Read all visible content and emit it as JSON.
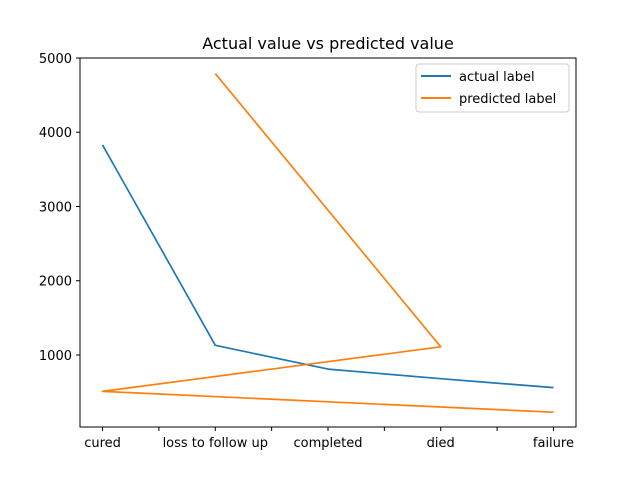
{
  "chart_data": {
    "type": "line",
    "title": "Actual value vs predicted value",
    "xlabel": "",
    "ylabel": "",
    "x_ticks": [
      {
        "x": 0,
        "label": "cured"
      },
      {
        "x": 0.5,
        "label": ""
      },
      {
        "x": 1,
        "label": "loss to follow up"
      },
      {
        "x": 1.5,
        "label": ""
      },
      {
        "x": 2,
        "label": "completed"
      },
      {
        "x": 2.5,
        "label": ""
      },
      {
        "x": 3,
        "label": "died"
      },
      {
        "x": 3.5,
        "label": ""
      },
      {
        "x": 4,
        "label": "failure"
      }
    ],
    "xlim": [
      -0.2,
      4.2
    ],
    "ylim": [
      30,
      5000
    ],
    "y_ticks": [
      1000,
      2000,
      3000,
      4000,
      5000
    ],
    "grid": false,
    "legend_position": "top-right",
    "series": [
      {
        "name": "actual label",
        "color": "#1f77b4",
        "x": [
          0,
          1,
          2,
          3,
          4
        ],
        "y": [
          3830,
          1130,
          810,
          680,
          560
        ]
      },
      {
        "name": "predicted label",
        "color": "#ff7f0e",
        "x": [
          1,
          3,
          0,
          4
        ],
        "y": [
          4790,
          1110,
          510,
          230
        ]
      }
    ]
  }
}
